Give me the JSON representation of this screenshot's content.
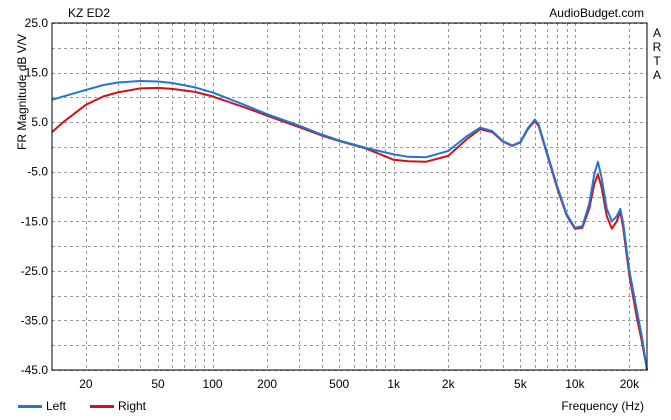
{
  "header": {
    "title_left": "KZ ED2",
    "title_right": "AudioBudget.com",
    "side_label": [
      "A",
      "R",
      "T",
      "A"
    ]
  },
  "legend": [
    {
      "name": "Left",
      "color": "#1f77d4"
    },
    {
      "name": "Right",
      "color": "#d0121b"
    }
  ],
  "chart_data": {
    "type": "line",
    "xlabel": "Frequency (Hz)",
    "ylabel": "FR Magnitude dB V/V",
    "x_scale": "log",
    "xlim": [
      13,
      25000
    ],
    "ylim": [
      -45,
      25
    ],
    "grid": true,
    "x_ticks": [
      20,
      50,
      100,
      200,
      500,
      1000,
      2000,
      5000,
      10000,
      20000
    ],
    "x_tick_labels": [
      "20",
      "50",
      "100",
      "200",
      "500",
      "1k",
      "2k",
      "5k",
      "10k",
      "20k"
    ],
    "y_ticks": [
      25.0,
      15.0,
      5.0,
      -5.0,
      -15.0,
      -25.0,
      -35.0,
      -45.0
    ],
    "y_tick_labels": [
      "25.0",
      "15.0",
      "5.0",
      "-5.0",
      "-15.0",
      "-25.0",
      "-35.0",
      "-45.0"
    ],
    "series": [
      {
        "name": "Left",
        "color": "#1f77d4",
        "points": [
          [
            13,
            9.5
          ],
          [
            15,
            10.2
          ],
          [
            20,
            11.5
          ],
          [
            25,
            12.5
          ],
          [
            30,
            13.0
          ],
          [
            40,
            13.3
          ],
          [
            50,
            13.2
          ],
          [
            60,
            12.9
          ],
          [
            80,
            12.0
          ],
          [
            100,
            11.0
          ],
          [
            150,
            8.5
          ],
          [
            200,
            6.6
          ],
          [
            300,
            4.3
          ],
          [
            400,
            2.5
          ],
          [
            500,
            1.3
          ],
          [
            700,
            -0.2
          ],
          [
            1000,
            -1.5
          ],
          [
            1200,
            -2.0
          ],
          [
            1500,
            -2.1
          ],
          [
            2000,
            -0.8
          ],
          [
            2500,
            2.0
          ],
          [
            3000,
            3.9
          ],
          [
            3500,
            3.2
          ],
          [
            4000,
            1.2
          ],
          [
            4500,
            0.3
          ],
          [
            5000,
            1.0
          ],
          [
            5500,
            3.8
          ],
          [
            6000,
            5.5
          ],
          [
            6300,
            4.6
          ],
          [
            7000,
            -1.0
          ],
          [
            8000,
            -8.0
          ],
          [
            9000,
            -13.5
          ],
          [
            10000,
            -16.3
          ],
          [
            11000,
            -16.0
          ],
          [
            12000,
            -11.5
          ],
          [
            12800,
            -5.5
          ],
          [
            13400,
            -3.0
          ],
          [
            14000,
            -6.0
          ],
          [
            15000,
            -12.5
          ],
          [
            16000,
            -15.0
          ],
          [
            17000,
            -14.0
          ],
          [
            17800,
            -12.5
          ],
          [
            18500,
            -15.5
          ],
          [
            20000,
            -25.0
          ],
          [
            22000,
            -33.0
          ],
          [
            23500,
            -38.5
          ],
          [
            25000,
            -45.0
          ]
        ]
      },
      {
        "name": "Right",
        "color": "#d0121b",
        "points": [
          [
            13,
            3.0
          ],
          [
            15,
            5.0
          ],
          [
            20,
            8.5
          ],
          [
            25,
            10.2
          ],
          [
            30,
            11.0
          ],
          [
            40,
            11.8
          ],
          [
            50,
            11.9
          ],
          [
            60,
            11.7
          ],
          [
            80,
            11.1
          ],
          [
            100,
            10.2
          ],
          [
            150,
            8.0
          ],
          [
            200,
            6.3
          ],
          [
            300,
            4.0
          ],
          [
            400,
            2.3
          ],
          [
            500,
            1.2
          ],
          [
            700,
            -0.3
          ],
          [
            1000,
            -2.6
          ],
          [
            1200,
            -2.9
          ],
          [
            1500,
            -3.0
          ],
          [
            2000,
            -1.8
          ],
          [
            2500,
            1.4
          ],
          [
            3000,
            3.6
          ],
          [
            3500,
            3.0
          ],
          [
            4000,
            1.1
          ],
          [
            4500,
            0.2
          ],
          [
            5000,
            0.9
          ],
          [
            5500,
            3.6
          ],
          [
            6000,
            5.2
          ],
          [
            6300,
            4.3
          ],
          [
            7000,
            -1.3
          ],
          [
            8000,
            -8.4
          ],
          [
            9000,
            -13.8
          ],
          [
            10000,
            -16.5
          ],
          [
            11000,
            -16.3
          ],
          [
            12000,
            -12.5
          ],
          [
            12800,
            -7.5
          ],
          [
            13400,
            -5.5
          ],
          [
            14000,
            -8.0
          ],
          [
            15000,
            -14.0
          ],
          [
            16000,
            -16.5
          ],
          [
            17000,
            -15.0
          ],
          [
            17800,
            -13.0
          ],
          [
            18500,
            -16.5
          ],
          [
            20000,
            -26.0
          ],
          [
            22000,
            -34.5
          ],
          [
            23500,
            -39.5
          ],
          [
            25000,
            -45.0
          ]
        ]
      }
    ]
  }
}
